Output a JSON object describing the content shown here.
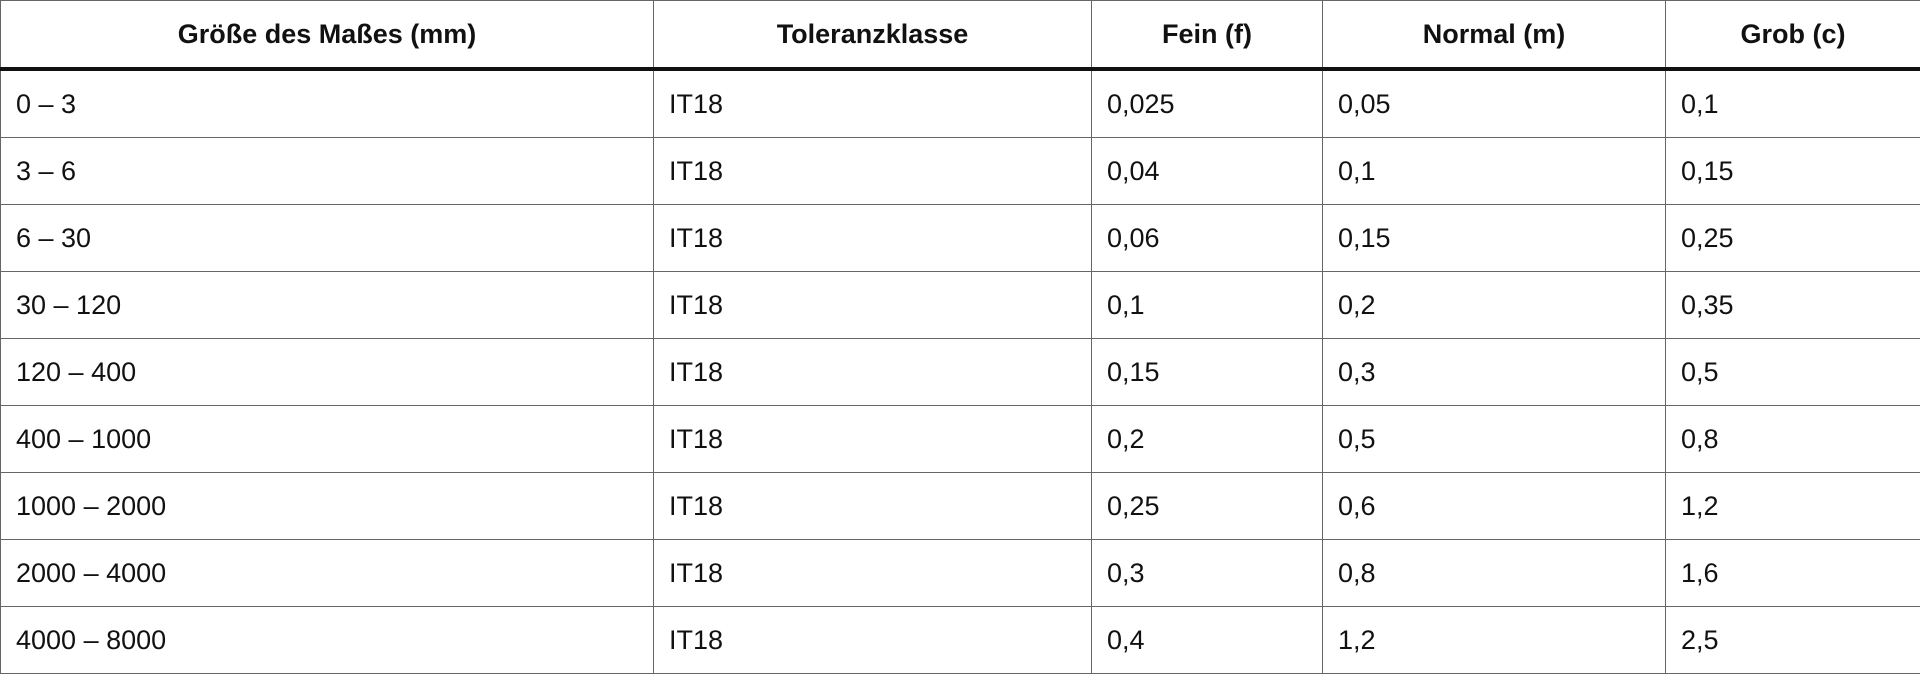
{
  "table": {
    "header": [
      "Größe des Maßes (mm)",
      "Toleranzklasse",
      "Fein (f)",
      "Normal (m)",
      "Grob (c)"
    ],
    "rows": [
      [
        "0 – 3",
        "IT18",
        "0,025",
        "0,05",
        "0,1"
      ],
      [
        "3 – 6",
        "IT18",
        "0,04",
        "0,1",
        "0,15"
      ],
      [
        "6 – 30",
        "IT18",
        "0,06",
        "0,15",
        "0,25"
      ],
      [
        "30 – 120",
        "IT18",
        "0,1",
        "0,2",
        "0,35"
      ],
      [
        "120 – 400",
        "IT18",
        "0,15",
        "0,3",
        "0,5"
      ],
      [
        "400 – 1000",
        "IT18",
        "0,2",
        "0,5",
        "0,8"
      ],
      [
        "1000 – 2000",
        "IT18",
        "0,25",
        "0,6",
        "1,2"
      ],
      [
        "2000 – 4000",
        "IT18",
        "0,3",
        "0,8",
        "1,6"
      ],
      [
        "4000 – 8000",
        "IT18",
        "0,4",
        "1,2",
        "2,5"
      ]
    ]
  }
}
